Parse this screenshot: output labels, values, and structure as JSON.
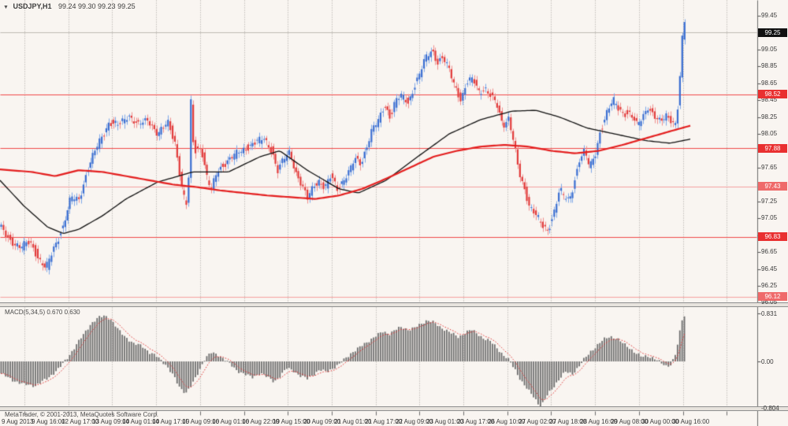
{
  "window": {
    "symbol_title": "USDJPY,H1",
    "ohlc": "99.24 99.30 99.23 99.25",
    "copyright": "MetaTrader, © 2001-2013, MetaQuotes Software Corp."
  },
  "indicator_label": "MACD(5,34,5) 0.670 0.630",
  "colors": {
    "background": "#f9f5f1",
    "grid": "#a8a49e",
    "bull_body": "#3a6ed2",
    "bull_wick": "#7fa8e8",
    "bear_body": "#e23b3b",
    "bear_wick": "#ef8f8f",
    "ma_black": "#111111",
    "ma_red": "#e41f1f",
    "hline_strong": "#f04848",
    "hline_light": "#f5a0a0",
    "current_price_line": "#bdb9b4",
    "macd_bar": "#6e6e6e",
    "macd_signal": "#e03030",
    "axis_border": "#6b6b6b",
    "price_box_red": "#e93030",
    "price_box_black": "#111111"
  },
  "price_axis": {
    "ticks": [
      {
        "label": "99.45",
        "price": 99.45
      },
      {
        "label": "99.05",
        "price": 99.05
      },
      {
        "label": "98.85",
        "price": 98.85
      },
      {
        "label": "98.65",
        "price": 98.65
      },
      {
        "label": "98.45",
        "price": 98.45
      },
      {
        "label": "98.25",
        "price": 98.25
      },
      {
        "label": "98.05",
        "price": 98.05
      },
      {
        "label": "97.65",
        "price": 97.65
      },
      {
        "label": "97.25",
        "price": 97.25
      },
      {
        "label": "97.05",
        "price": 97.05
      },
      {
        "label": "96.85",
        "price": 96.85
      },
      {
        "label": "96.65",
        "price": 96.65
      },
      {
        "label": "96.45",
        "price": 96.45
      },
      {
        "label": "96.25",
        "price": 96.25
      },
      {
        "label": "96.05",
        "price": 96.05
      }
    ],
    "current_price_box": {
      "label": "99.25",
      "price": 99.25
    },
    "level_boxes": [
      {
        "label": "98.52",
        "price": 98.52,
        "tone": "strong"
      },
      {
        "label": "97.88",
        "price": 97.88,
        "tone": "strong"
      },
      {
        "label": "97.43",
        "price": 97.43,
        "tone": "light"
      },
      {
        "label": "96.83",
        "price": 96.83,
        "tone": "strong"
      },
      {
        "label": "96.12",
        "price": 96.12,
        "tone": "light"
      }
    ]
  },
  "macd_axis": {
    "max_label": "0.831",
    "zero_label": "0.00",
    "min_label": "-0.804",
    "max": 0.831,
    "min": -0.804
  },
  "time_axis": {
    "labels": [
      "9 Aug 2013",
      "9 Aug 16:00",
      "12 Aug 17:00",
      "13 Aug 09:00",
      "14 Aug 01:00",
      "14 Aug 17:00",
      "15 Aug 09:00",
      "16 Aug 01:00",
      "16 Aug 22:00",
      "19 Aug 15:00",
      "20 Aug 09:00",
      "21 Aug 01:00",
      "21 Aug 17:00",
      "22 Aug 09:00",
      "23 Aug 01:00",
      "23 Aug 17:00",
      "26 Aug 10:00",
      "27 Aug 02:00",
      "27 Aug 18:00",
      "28 Aug 16:00",
      "29 Aug 08:00",
      "30 Aug 00:00",
      "30 Aug 16:00"
    ]
  },
  "chart_data": {
    "type": "candlestick",
    "symbol": "USDJPY",
    "timeframe": "H1",
    "price_range_shown": [
      96.05,
      99.45
    ],
    "current_price": 99.25,
    "hlines_strong": [
      98.52,
      97.88,
      96.83
    ],
    "hlines_light": [
      97.43,
      96.12
    ],
    "price_path": [
      [
        0,
        96.95
      ],
      [
        12,
        96.8
      ],
      [
        25,
        96.7
      ],
      [
        38,
        96.78
      ],
      [
        50,
        96.55
      ],
      [
        58,
        96.45
      ],
      [
        68,
        96.7
      ],
      [
        80,
        96.95
      ],
      [
        90,
        97.3
      ],
      [
        100,
        97.28
      ],
      [
        112,
        97.65
      ],
      [
        125,
        97.95
      ],
      [
        138,
        98.18
      ],
      [
        150,
        98.15
      ],
      [
        163,
        98.28
      ],
      [
        175,
        98.15
      ],
      [
        188,
        98.22
      ],
      [
        200,
        98.05
      ],
      [
        213,
        98.18
      ],
      [
        222,
        97.95
      ],
      [
        230,
        97.45
      ],
      [
        236,
        97.18
      ],
      [
        240,
        97.6
      ],
      [
        242,
        98.45
      ],
      [
        244,
        98.0
      ],
      [
        248,
        97.85
      ],
      [
        255,
        97.9
      ],
      [
        262,
        97.55
      ],
      [
        268,
        97.38
      ],
      [
        275,
        97.6
      ],
      [
        285,
        97.7
      ],
      [
        295,
        97.78
      ],
      [
        305,
        97.85
      ],
      [
        315,
        97.9
      ],
      [
        325,
        97.95
      ],
      [
        335,
        98.0
      ],
      [
        345,
        97.85
      ],
      [
        352,
        97.6
      ],
      [
        360,
        97.75
      ],
      [
        368,
        97.85
      ],
      [
        375,
        97.6
      ],
      [
        382,
        97.45
      ],
      [
        390,
        97.28
      ],
      [
        398,
        97.45
      ],
      [
        405,
        97.5
      ],
      [
        412,
        97.4
      ],
      [
        420,
        97.55
      ],
      [
        428,
        97.4
      ],
      [
        435,
        97.5
      ],
      [
        443,
        97.6
      ],
      [
        450,
        97.75
      ],
      [
        458,
        97.7
      ],
      [
        465,
        97.9
      ],
      [
        472,
        98.1
      ],
      [
        480,
        98.2
      ],
      [
        488,
        98.4
      ],
      [
        495,
        98.25
      ],
      [
        502,
        98.45
      ],
      [
        510,
        98.5
      ],
      [
        518,
        98.42
      ],
      [
        525,
        98.6
      ],
      [
        532,
        98.75
      ],
      [
        540,
        98.95
      ],
      [
        548,
        99.05
      ],
      [
        555,
        98.9
      ],
      [
        562,
        98.95
      ],
      [
        570,
        98.8
      ],
      [
        578,
        98.6
      ],
      [
        585,
        98.45
      ],
      [
        592,
        98.65
      ],
      [
        600,
        98.7
      ],
      [
        608,
        98.55
      ],
      [
        615,
        98.6
      ],
      [
        622,
        98.5
      ],
      [
        630,
        98.4
      ],
      [
        638,
        98.15
      ],
      [
        645,
        98.25
      ],
      [
        652,
        97.95
      ],
      [
        658,
        97.6
      ],
      [
        665,
        97.4
      ],
      [
        672,
        97.2
      ],
      [
        680,
        97.1
      ],
      [
        688,
        96.95
      ],
      [
        695,
        96.9
      ],
      [
        702,
        97.1
      ],
      [
        710,
        97.4
      ],
      [
        716,
        97.3
      ],
      [
        722,
        97.25
      ],
      [
        728,
        97.45
      ],
      [
        735,
        97.75
      ],
      [
        742,
        97.85
      ],
      [
        748,
        97.65
      ],
      [
        755,
        97.8
      ],
      [
        762,
        98.1
      ],
      [
        770,
        98.3
      ],
      [
        778,
        98.45
      ],
      [
        785,
        98.35
      ],
      [
        792,
        98.3
      ],
      [
        800,
        98.28
      ],
      [
        808,
        98.15
      ],
      [
        815,
        98.25
      ],
      [
        822,
        98.38
      ],
      [
        830,
        98.25
      ],
      [
        838,
        98.18
      ],
      [
        845,
        98.28
      ],
      [
        852,
        98.22
      ],
      [
        858,
        98.15
      ],
      [
        862,
        98.6
      ],
      [
        865,
        99.1
      ],
      [
        868,
        99.4
      ],
      [
        871,
        99.25
      ]
    ],
    "ma_black_path": [
      [
        0,
        97.5
      ],
      [
        30,
        97.2
      ],
      [
        60,
        96.95
      ],
      [
        80,
        96.87
      ],
      [
        100,
        96.92
      ],
      [
        130,
        97.08
      ],
      [
        160,
        97.28
      ],
      [
        200,
        97.48
      ],
      [
        245,
        97.6
      ],
      [
        290,
        97.6
      ],
      [
        330,
        97.78
      ],
      [
        355,
        97.85
      ],
      [
        390,
        97.62
      ],
      [
        430,
        97.4
      ],
      [
        455,
        97.35
      ],
      [
        490,
        97.5
      ],
      [
        530,
        97.78
      ],
      [
        570,
        98.05
      ],
      [
        610,
        98.22
      ],
      [
        650,
        98.32
      ],
      [
        680,
        98.33
      ],
      [
        710,
        98.25
      ],
      [
        745,
        98.12
      ],
      [
        780,
        98.05
      ],
      [
        820,
        97.97
      ],
      [
        850,
        97.94
      ],
      [
        877,
        97.99
      ]
    ],
    "ma_red_path": [
      [
        0,
        97.63
      ],
      [
        40,
        97.6
      ],
      [
        70,
        97.55
      ],
      [
        100,
        97.62
      ],
      [
        130,
        97.6
      ],
      [
        160,
        97.55
      ],
      [
        190,
        97.5
      ],
      [
        220,
        97.45
      ],
      [
        250,
        97.42
      ],
      [
        280,
        97.38
      ],
      [
        310,
        97.35
      ],
      [
        340,
        97.32
      ],
      [
        370,
        97.3
      ],
      [
        400,
        97.28
      ],
      [
        430,
        97.32
      ],
      [
        460,
        97.4
      ],
      [
        490,
        97.52
      ],
      [
        520,
        97.65
      ],
      [
        550,
        97.78
      ],
      [
        580,
        97.85
      ],
      [
        610,
        97.9
      ],
      [
        640,
        97.92
      ],
      [
        670,
        97.9
      ],
      [
        700,
        97.85
      ],
      [
        730,
        97.82
      ],
      [
        760,
        97.85
      ],
      [
        790,
        97.92
      ],
      [
        820,
        98.0
      ],
      [
        850,
        98.08
      ],
      [
        877,
        98.15
      ]
    ],
    "macd_hist_path": [
      [
        0,
        -0.2
      ],
      [
        15,
        -0.32
      ],
      [
        30,
        -0.4
      ],
      [
        45,
        -0.42
      ],
      [
        60,
        -0.3
      ],
      [
        75,
        -0.12
      ],
      [
        85,
        0.05
      ],
      [
        95,
        0.25
      ],
      [
        105,
        0.45
      ],
      [
        115,
        0.65
      ],
      [
        125,
        0.76
      ],
      [
        133,
        0.8
      ],
      [
        140,
        0.74
      ],
      [
        150,
        0.55
      ],
      [
        160,
        0.42
      ],
      [
        170,
        0.3
      ],
      [
        180,
        0.28
      ],
      [
        190,
        0.15
      ],
      [
        200,
        0.08
      ],
      [
        210,
        -0.05
      ],
      [
        220,
        -0.25
      ],
      [
        228,
        -0.45
      ],
      [
        236,
        -0.55
      ],
      [
        244,
        -0.4
      ],
      [
        252,
        -0.18
      ],
      [
        260,
        0.05
      ],
      [
        268,
        0.15
      ],
      [
        276,
        0.12
      ],
      [
        284,
        0.05
      ],
      [
        292,
        -0.05
      ],
      [
        300,
        -0.15
      ],
      [
        310,
        -0.22
      ],
      [
        320,
        -0.28
      ],
      [
        330,
        -0.2
      ],
      [
        340,
        -0.28
      ],
      [
        348,
        -0.35
      ],
      [
        356,
        -0.25
      ],
      [
        364,
        -0.12
      ],
      [
        372,
        -0.15
      ],
      [
        380,
        -0.25
      ],
      [
        390,
        -0.3
      ],
      [
        398,
        -0.22
      ],
      [
        406,
        -0.15
      ],
      [
        414,
        -0.18
      ],
      [
        422,
        -0.12
      ],
      [
        430,
        -0.06
      ],
      [
        438,
        0.05
      ],
      [
        446,
        0.15
      ],
      [
        454,
        0.22
      ],
      [
        462,
        0.3
      ],
      [
        470,
        0.38
      ],
      [
        478,
        0.45
      ],
      [
        486,
        0.52
      ],
      [
        494,
        0.48
      ],
      [
        502,
        0.55
      ],
      [
        510,
        0.6
      ],
      [
        518,
        0.55
      ],
      [
        526,
        0.58
      ],
      [
        534,
        0.65
      ],
      [
        542,
        0.72
      ],
      [
        550,
        0.68
      ],
      [
        558,
        0.6
      ],
      [
        566,
        0.55
      ],
      [
        574,
        0.48
      ],
      [
        582,
        0.42
      ],
      [
        590,
        0.5
      ],
      [
        598,
        0.55
      ],
      [
        606,
        0.48
      ],
      [
        614,
        0.4
      ],
      [
        622,
        0.35
      ],
      [
        630,
        0.25
      ],
      [
        638,
        0.12
      ],
      [
        646,
        0.02
      ],
      [
        654,
        -0.15
      ],
      [
        662,
        -0.35
      ],
      [
        670,
        -0.5
      ],
      [
        678,
        -0.62
      ],
      [
        686,
        -0.8
      ],
      [
        694,
        -0.6
      ],
      [
        702,
        -0.45
      ],
      [
        710,
        -0.3
      ],
      [
        718,
        -0.18
      ],
      [
        726,
        -0.22
      ],
      [
        734,
        -0.1
      ],
      [
        742,
        0.05
      ],
      [
        750,
        0.18
      ],
      [
        758,
        0.28
      ],
      [
        766,
        0.38
      ],
      [
        774,
        0.44
      ],
      [
        782,
        0.4
      ],
      [
        790,
        0.32
      ],
      [
        798,
        0.25
      ],
      [
        806,
        0.15
      ],
      [
        814,
        0.08
      ],
      [
        822,
        0.1
      ],
      [
        830,
        0.05
      ],
      [
        838,
        -0.02
      ],
      [
        846,
        -0.08
      ],
      [
        852,
        -0.05
      ],
      [
        858,
        0.15
      ],
      [
        862,
        0.45
      ],
      [
        865,
        0.7
      ],
      [
        868,
        0.83
      ],
      [
        871,
        0.67
      ]
    ],
    "macd_current": 0.67,
    "macd_signal_current": 0.63
  }
}
